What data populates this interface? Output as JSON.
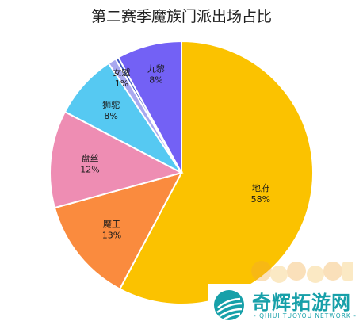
{
  "chart_data": {
    "type": "pie",
    "title": "第二赛季魔族门派出场占比",
    "start_angle_deg": 0,
    "direction": "clockwise",
    "slices": [
      {
        "label": "地府",
        "value": 58,
        "value_text": "58%",
        "color": "#fbc200"
      },
      {
        "label": "魔王",
        "value": 13,
        "value_text": "13%",
        "color": "#fa8b3e"
      },
      {
        "label": "盘丝",
        "value": 12,
        "value_text": "12%",
        "color": "#ee8db3"
      },
      {
        "label": "狮驼",
        "value": 8,
        "value_text": "8%",
        "color": "#56c9f2"
      },
      {
        "label": "女魃",
        "value": 1,
        "value_text": "1%",
        "color": "#a8a8ef"
      },
      {
        "label": "",
        "value": 0.4,
        "value_text": "",
        "color": "#3f56c2"
      },
      {
        "label": "九黎",
        "value": 8,
        "value_text": "8%",
        "color": "#7361f5"
      }
    ]
  },
  "watermark": {
    "name": "奇辉拓游网",
    "sub": "- QIHUI TUOYOU NETWORK -",
    "color": "#17a0a9"
  }
}
